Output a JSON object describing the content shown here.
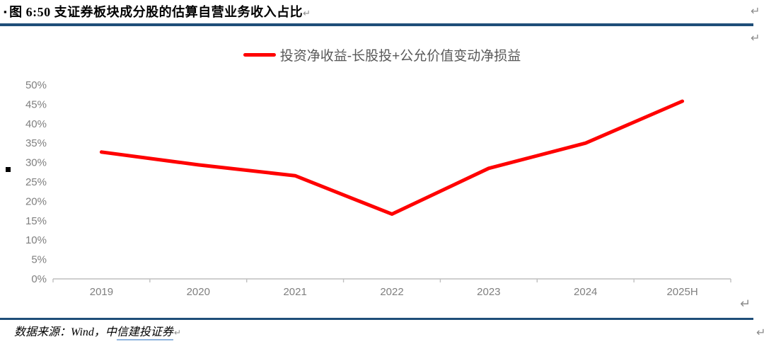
{
  "page": {
    "title_bullet": "▪",
    "title": "图 6:50 支证券板块成分股的估算自营业务收入占比",
    "return_mark": "↵",
    "source_prefix": "数据来源：Wind，中",
    "source_link": "信建投证券",
    "colors": {
      "rule_blue": "#1F4E79",
      "line_red": "#FF0000",
      "axis_line_gray": "#BFBFBF",
      "tick_label_gray": "#7F7F7F",
      "legend_text_gray": "#595959"
    }
  },
  "chart_data": {
    "type": "line",
    "categories": [
      "2019",
      "2020",
      "2021",
      "2022",
      "2023",
      "2024",
      "2025H"
    ],
    "series": [
      {
        "name": "投资净收益-长股投+公允价值变动净损益",
        "values": [
          32.7,
          29.4,
          26.6,
          16.7,
          28.5,
          35.0,
          45.8
        ],
        "color": "#FF0000"
      }
    ],
    "title": "",
    "xlabel": "",
    "ylabel": "",
    "ylim": [
      0,
      50
    ],
    "y_tick_step": 5,
    "y_ticks": [
      "0%",
      "5%",
      "10%",
      "15%",
      "20%",
      "25%",
      "30%",
      "35%",
      "40%",
      "45%",
      "50%"
    ],
    "legend_position": "top-center",
    "grid": false
  }
}
